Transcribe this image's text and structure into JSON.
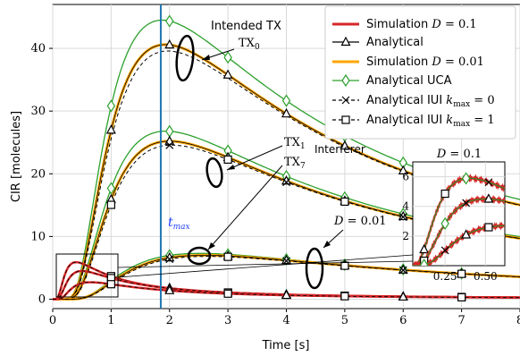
{
  "chart_data": {
    "type": "line",
    "title": "",
    "xlabel": "Time [s]",
    "ylabel": "CIR [molecules]",
    "xlim": [
      0,
      8
    ],
    "ylim": [
      -1.5,
      47
    ],
    "grid": true,
    "x_ticks": [
      "0",
      "1",
      "2",
      "3",
      "4",
      "5",
      "6",
      "7",
      "8"
    ],
    "y_ticks": [
      "0",
      "10",
      "20",
      "30",
      "40"
    ],
    "legend": {
      "placement": "top-right",
      "entries": [
        {
          "label": "Simulation D = 0.1",
          "color": "#d62728",
          "style": "solid"
        },
        {
          "label": "Analytical",
          "color": "#000000",
          "marker": "triangle"
        },
        {
          "label": "Simulation D = 0.01",
          "color": "#ffa500",
          "style": "solid"
        },
        {
          "label": "Analytical UCA",
          "color": "#2ca02c",
          "marker": "diamond"
        },
        {
          "label": "Analytical IUI kmax = 0",
          "color": "#000000",
          "marker": "x",
          "style": "dashed"
        },
        {
          "label": "Analytical IUI kmax = 1",
          "color": "#000000",
          "marker": "square",
          "style": "dashed"
        }
      ]
    },
    "vline": {
      "x": 1.85,
      "label": "tmax",
      "color": "#1f77b4"
    },
    "annotations": [
      {
        "text": "Intended TX",
        "sub": "TX0"
      },
      {
        "text": "TX1",
        "sub2": "TX7",
        "extra": "Interferer"
      },
      {
        "text": "D = 0.01"
      }
    ],
    "series_curves": [
      {
        "name": "D=0.01 intended",
        "peak_t": 1.93,
        "peak": 40.6,
        "uca_peak": 44.5
      },
      {
        "name": "D=0.01 interferer",
        "peak_t": 2.0,
        "peak": 25.2,
        "uca_peak": 26.8
      },
      {
        "name": "D=0.01 far",
        "peak_t": 2.6,
        "peak": 7.0,
        "uca_peak": 7.3
      },
      {
        "name": "D=0.1 intended",
        "peak_t": 0.4,
        "peak": 5.9
      },
      {
        "name": "D=0.1 interferer",
        "peak_t": 0.5,
        "peak": 4.5
      },
      {
        "name": "D=0.1 far",
        "peak_t": 0.65,
        "peak": 2.7
      }
    ],
    "inset": {
      "title": "D = 0.1",
      "xlim": [
        0.05,
        0.62
      ],
      "ylim": [
        0,
        7
      ],
      "x_ticks": [
        "0.25",
        "0.50"
      ],
      "y_ticks": [
        "2",
        "4",
        "6"
      ]
    }
  }
}
